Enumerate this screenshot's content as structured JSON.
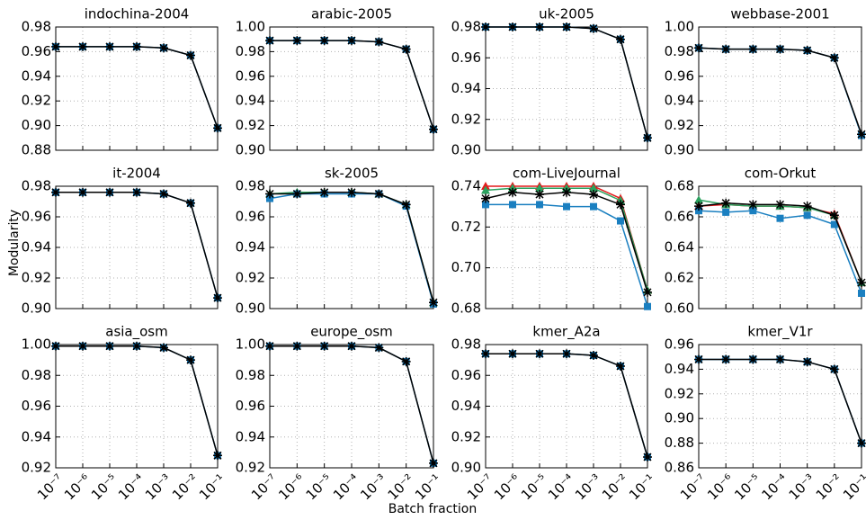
{
  "ylabel": "Modularity",
  "xlabel": "Batch fraction",
  "chart_data": [
    {
      "type": "line",
      "title": "indochina-2004",
      "x": [
        1e-07,
        1e-06,
        1e-05,
        0.0001,
        0.001,
        0.01,
        0.1
      ],
      "xlim": [
        1e-07,
        0.1
      ],
      "xticks": [
        1e-07,
        1e-06,
        1e-05,
        0.0001,
        0.001,
        0.01,
        0.1
      ],
      "show_xtick_labels": false,
      "xscale": "log",
      "grid": true,
      "ylim": [
        0.88,
        0.98
      ],
      "yticks": [
        0.88,
        {
          "value": 0.9,
          "label": "0.90"
        },
        0.92,
        0.94,
        0.96,
        0.98
      ],
      "series": [
        {
          "color": "#1a7fc0",
          "marker": "square",
          "values": [
            0.964,
            0.964,
            0.964,
            0.964,
            0.963,
            0.957,
            0.898
          ]
        },
        {
          "color": "#000000",
          "marker": "star",
          "values": [
            0.964,
            0.964,
            0.964,
            0.964,
            0.963,
            0.957,
            0.898
          ]
        }
      ]
    },
    {
      "type": "line",
      "title": "arabic-2005",
      "x": [
        1e-07,
        1e-06,
        1e-05,
        0.0001,
        0.001,
        0.01,
        0.1
      ],
      "xlim": [
        1e-07,
        0.1
      ],
      "xticks": [
        1e-07,
        1e-06,
        1e-05,
        0.0001,
        0.001,
        0.01,
        0.1
      ],
      "show_xtick_labels": false,
      "xscale": "log",
      "grid": true,
      "ylim": [
        0.9,
        1.0
      ],
      "yticks": [
        {
          "value": 0.9,
          "label": "0.90"
        },
        0.92,
        0.94,
        0.96,
        0.98,
        {
          "value": 1.0,
          "label": "1.00"
        }
      ],
      "series": [
        {
          "color": "#1a7fc0",
          "marker": "square",
          "values": [
            0.989,
            0.989,
            0.989,
            0.989,
            0.988,
            0.982,
            0.917
          ]
        },
        {
          "color": "#000000",
          "marker": "star",
          "values": [
            0.989,
            0.989,
            0.989,
            0.989,
            0.988,
            0.982,
            0.917
          ]
        }
      ]
    },
    {
      "type": "line",
      "title": "uk-2005",
      "x": [
        1e-07,
        1e-06,
        1e-05,
        0.0001,
        0.001,
        0.01,
        0.1
      ],
      "xlim": [
        1e-07,
        0.1
      ],
      "xticks": [
        1e-07,
        1e-06,
        1e-05,
        0.0001,
        0.001,
        0.01,
        0.1
      ],
      "show_xtick_labels": false,
      "xscale": "log",
      "grid": true,
      "ylim": [
        0.9,
        0.98
      ],
      "yticks": [
        {
          "value": 0.9,
          "label": "0.90"
        },
        0.92,
        0.94,
        0.96,
        0.98
      ],
      "series": [
        {
          "color": "#1a7fc0",
          "marker": "square",
          "values": [
            0.98,
            0.98,
            0.98,
            0.98,
            0.979,
            0.972,
            0.908
          ]
        },
        {
          "color": "#000000",
          "marker": "star",
          "values": [
            0.98,
            0.98,
            0.98,
            0.98,
            0.979,
            0.972,
            0.908
          ]
        }
      ]
    },
    {
      "type": "line",
      "title": "webbase-2001",
      "x": [
        1e-07,
        1e-06,
        1e-05,
        0.0001,
        0.001,
        0.01,
        0.1
      ],
      "xlim": [
        1e-07,
        0.1
      ],
      "xticks": [
        1e-07,
        1e-06,
        1e-05,
        0.0001,
        0.001,
        0.01,
        0.1
      ],
      "show_xtick_labels": false,
      "xscale": "log",
      "grid": true,
      "ylim": [
        0.9,
        1.0
      ],
      "yticks": [
        {
          "value": 0.9,
          "label": "0.90"
        },
        0.92,
        0.94,
        0.96,
        0.98,
        {
          "value": 1.0,
          "label": "1.00"
        }
      ],
      "series": [
        {
          "color": "#1a7fc0",
          "marker": "square",
          "values": [
            0.983,
            0.982,
            0.982,
            0.982,
            0.981,
            0.975,
            0.912
          ]
        },
        {
          "color": "#000000",
          "marker": "star",
          "values": [
            0.983,
            0.982,
            0.982,
            0.982,
            0.981,
            0.975,
            0.913
          ]
        }
      ]
    },
    {
      "type": "line",
      "title": "it-2004",
      "x": [
        1e-07,
        1e-06,
        1e-05,
        0.0001,
        0.001,
        0.01,
        0.1
      ],
      "xlim": [
        1e-07,
        0.1
      ],
      "xticks": [
        1e-07,
        1e-06,
        1e-05,
        0.0001,
        0.001,
        0.01,
        0.1
      ],
      "show_xtick_labels": false,
      "xscale": "log",
      "grid": true,
      "ylim": [
        0.9,
        0.98
      ],
      "yticks": [
        {
          "value": 0.9,
          "label": "0.90"
        },
        0.92,
        0.94,
        0.96,
        0.98
      ],
      "series": [
        {
          "color": "#1a7fc0",
          "marker": "square",
          "values": [
            0.976,
            0.976,
            0.976,
            0.976,
            0.975,
            0.969,
            0.907
          ]
        },
        {
          "color": "#000000",
          "marker": "star",
          "values": [
            0.976,
            0.976,
            0.976,
            0.976,
            0.975,
            0.969,
            0.907
          ]
        }
      ]
    },
    {
      "type": "line",
      "title": "sk-2005",
      "x": [
        1e-07,
        1e-06,
        1e-05,
        0.0001,
        0.001,
        0.01,
        0.1
      ],
      "xlim": [
        1e-07,
        0.1
      ],
      "xticks": [
        1e-07,
        1e-06,
        1e-05,
        0.0001,
        0.001,
        0.01,
        0.1
      ],
      "show_xtick_labels": false,
      "xscale": "log",
      "grid": true,
      "ylim": [
        0.9,
        0.98
      ],
      "yticks": [
        {
          "value": 0.9,
          "label": "0.90"
        },
        0.92,
        0.94,
        0.96,
        0.98
      ],
      "series": [
        {
          "color": "#2ca25f",
          "marker": "triangle",
          "values": [
            0.975,
            0.976,
            0.976,
            0.976,
            0.975,
            0.968,
            0.904
          ]
        },
        {
          "color": "#1a7fc0",
          "marker": "square",
          "values": [
            0.972,
            0.975,
            0.975,
            0.975,
            0.975,
            0.967,
            0.903
          ]
        },
        {
          "color": "#000000",
          "marker": "star",
          "values": [
            0.975,
            0.975,
            0.976,
            0.976,
            0.975,
            0.968,
            0.904
          ]
        }
      ]
    },
    {
      "type": "line",
      "title": "com-LiveJournal",
      "x": [
        1e-07,
        1e-06,
        1e-05,
        0.0001,
        0.001,
        0.01,
        0.1
      ],
      "xlim": [
        1e-07,
        0.1
      ],
      "xticks": [
        1e-07,
        1e-06,
        1e-05,
        0.0001,
        0.001,
        0.01,
        0.1
      ],
      "show_xtick_labels": false,
      "xscale": "log",
      "grid": true,
      "ylim": [
        0.68,
        0.74
      ],
      "yticks": [
        0.68,
        {
          "value": 0.7,
          "label": "0.70"
        },
        0.72,
        0.74
      ],
      "series": [
        {
          "color": "#e41a1c",
          "marker": "triangle",
          "values": [
            0.74,
            0.74,
            0.74,
            0.74,
            0.74,
            0.734,
            0.689
          ]
        },
        {
          "color": "#2ca25f",
          "marker": "triangle",
          "values": [
            0.738,
            0.739,
            0.739,
            0.739,
            0.739,
            0.733,
            0.689
          ]
        },
        {
          "color": "#1a7fc0",
          "marker": "square",
          "values": [
            0.731,
            0.731,
            0.731,
            0.73,
            0.73,
            0.723,
            0.681
          ]
        },
        {
          "color": "#000000",
          "marker": "star",
          "values": [
            0.734,
            0.737,
            0.736,
            0.737,
            0.736,
            0.731,
            0.688
          ]
        }
      ]
    },
    {
      "type": "line",
      "title": "com-Orkut",
      "x": [
        1e-07,
        1e-06,
        1e-05,
        0.0001,
        0.001,
        0.01,
        0.1
      ],
      "xlim": [
        1e-07,
        0.1
      ],
      "xticks": [
        1e-07,
        1e-06,
        1e-05,
        0.0001,
        0.001,
        0.01,
        0.1
      ],
      "show_xtick_labels": false,
      "xscale": "log",
      "grid": true,
      "ylim": [
        0.6,
        0.68
      ],
      "yticks": [
        {
          "value": 0.6,
          "label": "0.60"
        },
        0.62,
        0.64,
        0.66,
        0.68
      ],
      "series": [
        {
          "color": "#e41a1c",
          "marker": "triangle",
          "values": [
            0.667,
            0.668,
            0.667,
            0.667,
            0.666,
            0.662,
            0.617
          ]
        },
        {
          "color": "#2ca25f",
          "marker": "triangle",
          "values": [
            0.671,
            0.668,
            0.667,
            0.667,
            0.666,
            0.661,
            0.617
          ]
        },
        {
          "color": "#1a7fc0",
          "marker": "square",
          "values": [
            0.664,
            0.663,
            0.664,
            0.659,
            0.661,
            0.655,
            0.61
          ]
        },
        {
          "color": "#000000",
          "marker": "star",
          "values": [
            0.667,
            0.669,
            0.668,
            0.668,
            0.667,
            0.661,
            0.617
          ]
        }
      ]
    },
    {
      "type": "line",
      "title": "asia_osm",
      "x": [
        1e-07,
        1e-06,
        1e-05,
        0.0001,
        0.001,
        0.01,
        0.1
      ],
      "xlim": [
        1e-07,
        0.1
      ],
      "xticks": [
        {
          "value": 1e-07,
          "label": "10⁻⁷"
        },
        {
          "value": 1e-06,
          "label": "10⁻⁶"
        },
        {
          "value": 1e-05,
          "label": "10⁻⁵"
        },
        {
          "value": 0.0001,
          "label": "10⁻⁴"
        },
        {
          "value": 0.001,
          "label": "10⁻³"
        },
        {
          "value": 0.01,
          "label": "10⁻²"
        },
        {
          "value": 0.1,
          "label": "10⁻¹"
        }
      ],
      "show_xtick_labels": true,
      "xscale": "log",
      "grid": true,
      "ylim": [
        0.92,
        1.0
      ],
      "yticks": [
        0.92,
        0.94,
        0.96,
        0.98,
        {
          "value": 1.0,
          "label": "1.00"
        }
      ],
      "series": [
        {
          "color": "#1a7fc0",
          "marker": "square",
          "values": [
            0.999,
            0.999,
            0.999,
            0.999,
            0.998,
            0.99,
            0.928
          ]
        },
        {
          "color": "#000000",
          "marker": "star",
          "values": [
            0.999,
            0.999,
            0.999,
            0.999,
            0.998,
            0.99,
            0.928
          ]
        }
      ]
    },
    {
      "type": "line",
      "title": "europe_osm",
      "x": [
        1e-07,
        1e-06,
        1e-05,
        0.0001,
        0.001,
        0.01,
        0.1
      ],
      "xlim": [
        1e-07,
        0.1
      ],
      "xticks": [
        {
          "value": 1e-07,
          "label": "10⁻⁷"
        },
        {
          "value": 1e-06,
          "label": "10⁻⁶"
        },
        {
          "value": 1e-05,
          "label": "10⁻⁵"
        },
        {
          "value": 0.0001,
          "label": "10⁻⁴"
        },
        {
          "value": 0.001,
          "label": "10⁻³"
        },
        {
          "value": 0.01,
          "label": "10⁻²"
        },
        {
          "value": 0.1,
          "label": "10⁻¹"
        }
      ],
      "show_xtick_labels": true,
      "xscale": "log",
      "grid": true,
      "ylim": [
        0.92,
        1.0
      ],
      "yticks": [
        0.92,
        0.94,
        0.96,
        0.98,
        {
          "value": 1.0,
          "label": "1.00"
        }
      ],
      "series": [
        {
          "color": "#1a7fc0",
          "marker": "square",
          "values": [
            0.999,
            0.999,
            0.999,
            0.999,
            0.998,
            0.989,
            0.923
          ]
        },
        {
          "color": "#000000",
          "marker": "star",
          "values": [
            0.999,
            0.999,
            0.999,
            0.999,
            0.998,
            0.989,
            0.923
          ]
        }
      ]
    },
    {
      "type": "line",
      "title": "kmer_A2a",
      "x": [
        1e-07,
        1e-06,
        1e-05,
        0.0001,
        0.001,
        0.01,
        0.1
      ],
      "xlim": [
        1e-07,
        0.1
      ],
      "xticks": [
        {
          "value": 1e-07,
          "label": "10⁻⁷"
        },
        {
          "value": 1e-06,
          "label": "10⁻⁶"
        },
        {
          "value": 1e-05,
          "label": "10⁻⁵"
        },
        {
          "value": 0.0001,
          "label": "10⁻⁴"
        },
        {
          "value": 0.001,
          "label": "10⁻³"
        },
        {
          "value": 0.01,
          "label": "10⁻²"
        },
        {
          "value": 0.1,
          "label": "10⁻¹"
        }
      ],
      "show_xtick_labels": true,
      "xscale": "log",
      "grid": true,
      "ylim": [
        0.9,
        0.98
      ],
      "yticks": [
        {
          "value": 0.9,
          "label": "0.90"
        },
        0.92,
        0.94,
        0.96,
        0.98
      ],
      "series": [
        {
          "color": "#1a7fc0",
          "marker": "square",
          "values": [
            0.974,
            0.974,
            0.974,
            0.974,
            0.973,
            0.966,
            0.907
          ]
        },
        {
          "color": "#000000",
          "marker": "star",
          "values": [
            0.974,
            0.974,
            0.974,
            0.974,
            0.973,
            0.966,
            0.907
          ]
        }
      ]
    },
    {
      "type": "line",
      "title": "kmer_V1r",
      "x": [
        1e-07,
        1e-06,
        1e-05,
        0.0001,
        0.001,
        0.01,
        0.1
      ],
      "xlim": [
        1e-07,
        0.1
      ],
      "xticks": [
        {
          "value": 1e-07,
          "label": "10⁻⁷"
        },
        {
          "value": 1e-06,
          "label": "10⁻⁶"
        },
        {
          "value": 1e-05,
          "label": "10⁻⁵"
        },
        {
          "value": 0.0001,
          "label": "10⁻⁴"
        },
        {
          "value": 0.001,
          "label": "10⁻³"
        },
        {
          "value": 0.01,
          "label": "10⁻²"
        },
        {
          "value": 0.1,
          "label": "10⁻¹"
        }
      ],
      "show_xtick_labels": true,
      "xscale": "log",
      "grid": true,
      "ylim": [
        0.86,
        0.96
      ],
      "yticks": [
        0.86,
        0.88,
        {
          "value": 0.9,
          "label": "0.90"
        },
        0.92,
        0.94,
        0.96
      ],
      "series": [
        {
          "color": "#1a7fc0",
          "marker": "square",
          "values": [
            0.948,
            0.948,
            0.948,
            0.948,
            0.946,
            0.94,
            0.88
          ]
        },
        {
          "color": "#000000",
          "marker": "star",
          "values": [
            0.948,
            0.948,
            0.948,
            0.948,
            0.946,
            0.94,
            0.88
          ]
        }
      ]
    }
  ]
}
